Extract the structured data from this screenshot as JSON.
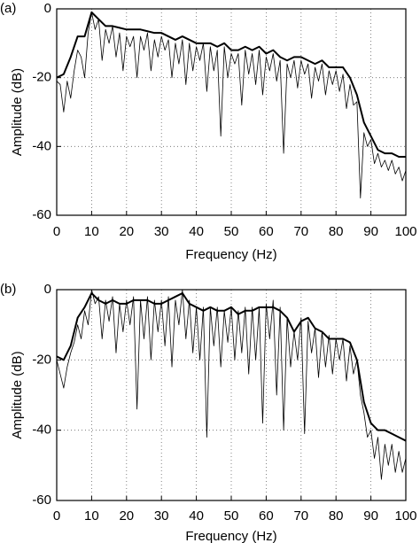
{
  "chart_data": [
    {
      "type": "line",
      "label": "(a)",
      "xlabel": "Frequency  (Hz)",
      "ylabel": "Amplitude  (dB)",
      "xlim": [
        0,
        100
      ],
      "ylim": [
        -60,
        0
      ],
      "xticks": [
        0,
        10,
        20,
        30,
        40,
        50,
        60,
        70,
        80,
        90,
        100
      ],
      "yticks": [
        -60,
        -40,
        -20,
        0
      ],
      "grid": true,
      "series": [
        {
          "color": "#000000",
          "linewidth": 2,
          "x": [
            0,
            2,
            4,
            6,
            8,
            10,
            12,
            14,
            16,
            18,
            20,
            22,
            24,
            26,
            28,
            30,
            32,
            34,
            36,
            38,
            40,
            42,
            44,
            46,
            48,
            50,
            52,
            54,
            56,
            58,
            60,
            62,
            64,
            66,
            68,
            70,
            72,
            74,
            76,
            78,
            80,
            82,
            84,
            86,
            88,
            90,
            92,
            94,
            96,
            98,
            100
          ],
          "values": [
            -20,
            -19,
            -14,
            -8,
            -8,
            -1,
            -3,
            -5,
            -5,
            -5.5,
            -6,
            -6,
            -6,
            -6.5,
            -7,
            -7,
            -8,
            -9,
            -8,
            -9,
            -10,
            -10,
            -10,
            -11,
            -10,
            -12,
            -12,
            -11,
            -12,
            -11,
            -13,
            -12,
            -14,
            -15,
            -14,
            -14,
            -15,
            -16,
            -15,
            -17,
            -17,
            -17,
            -20,
            -25,
            -33,
            -37,
            -41,
            -42,
            -42,
            -43,
            -43
          ]
        },
        {
          "color": "#000000",
          "linewidth": 0.8,
          "x": [
            0,
            1,
            2,
            3,
            4,
            5,
            6,
            7,
            8,
            9,
            10,
            11,
            12,
            13,
            14,
            15,
            16,
            17,
            18,
            19,
            20,
            21,
            22,
            23,
            24,
            25,
            26,
            27,
            28,
            29,
            30,
            31,
            32,
            33,
            34,
            35,
            36,
            37,
            38,
            39,
            40,
            41,
            42,
            43,
            44,
            45,
            46,
            47,
            48,
            49,
            50,
            51,
            52,
            53,
            54,
            55,
            56,
            57,
            58,
            59,
            60,
            61,
            62,
            63,
            64,
            65,
            66,
            67,
            68,
            69,
            70,
            71,
            72,
            73,
            74,
            75,
            76,
            77,
            78,
            79,
            80,
            81,
            82,
            83,
            84,
            85,
            86,
            87,
            88,
            89,
            90,
            91,
            92,
            93,
            94,
            95,
            96,
            97,
            98,
            99,
            100
          ],
          "values": [
            -21,
            -22,
            -30,
            -21,
            -26,
            -18,
            -12,
            -14,
            -20,
            -7,
            -1,
            -6,
            -3,
            -15,
            -6,
            -10,
            -5,
            -14,
            -7,
            -18,
            -8,
            -11,
            -8,
            -20,
            -8,
            -12,
            -7,
            -18,
            -9,
            -14,
            -8,
            -12,
            -9,
            -20,
            -10,
            -16,
            -9,
            -22,
            -10,
            -18,
            -11,
            -15,
            -10,
            -24,
            -11,
            -18,
            -12,
            -37,
            -11,
            -20,
            -13,
            -16,
            -13,
            -28,
            -12,
            -19,
            -13,
            -22,
            -12,
            -25,
            -14,
            -18,
            -13,
            -21,
            -15,
            -42,
            -16,
            -20,
            -15,
            -23,
            -15,
            -19,
            -16,
            -26,
            -17,
            -21,
            -16,
            -25,
            -18,
            -22,
            -18,
            -24,
            -19,
            -29,
            -22,
            -28,
            -27,
            -55,
            -36,
            -40,
            -38,
            -45,
            -42,
            -46,
            -44,
            -47,
            -44,
            -48,
            -46,
            -50,
            -47
          ]
        }
      ]
    },
    {
      "type": "line",
      "label": "(b)",
      "xlabel": "Frequency  (Hz)",
      "ylabel": "Amplitude  (dB)",
      "xlim": [
        0,
        100
      ],
      "ylim": [
        -60,
        0
      ],
      "xticks": [
        0,
        10,
        20,
        30,
        40,
        50,
        60,
        70,
        80,
        90,
        100
      ],
      "yticks": [
        -60,
        -40,
        -20,
        0
      ],
      "grid": true,
      "series": [
        {
          "color": "#000000",
          "linewidth": 2,
          "x": [
            0,
            2,
            4,
            6,
            8,
            10,
            12,
            14,
            16,
            18,
            20,
            22,
            24,
            26,
            28,
            30,
            32,
            34,
            36,
            38,
            40,
            42,
            44,
            46,
            48,
            50,
            52,
            54,
            56,
            58,
            60,
            62,
            64,
            66,
            68,
            70,
            72,
            74,
            76,
            78,
            80,
            82,
            84,
            86,
            88,
            90,
            92,
            94,
            96,
            98,
            100
          ],
          "values": [
            -19,
            -20,
            -16,
            -8,
            -5,
            -1,
            -3,
            -4,
            -3,
            -4,
            -4,
            -3,
            -3,
            -3,
            -4,
            -4,
            -3,
            -2,
            -1,
            -4,
            -5,
            -6,
            -5,
            -6,
            -6,
            -5,
            -7,
            -6,
            -6,
            -5,
            -5,
            -5,
            -6,
            -8,
            -12,
            -9,
            -8,
            -11,
            -12,
            -14,
            -14,
            -14,
            -15,
            -20,
            -32,
            -38,
            -40,
            -40,
            -41,
            -42,
            -43
          ]
        },
        {
          "color": "#000000",
          "linewidth": 0.8,
          "x": [
            0,
            1,
            2,
            3,
            4,
            5,
            6,
            7,
            8,
            9,
            10,
            11,
            12,
            13,
            14,
            15,
            16,
            17,
            18,
            19,
            20,
            21,
            22,
            23,
            24,
            25,
            26,
            27,
            28,
            29,
            30,
            31,
            32,
            33,
            34,
            35,
            36,
            37,
            38,
            39,
            40,
            41,
            42,
            43,
            44,
            45,
            46,
            47,
            48,
            49,
            50,
            51,
            52,
            53,
            54,
            55,
            56,
            57,
            58,
            59,
            60,
            61,
            62,
            63,
            64,
            65,
            66,
            67,
            68,
            69,
            70,
            71,
            72,
            73,
            74,
            75,
            76,
            77,
            78,
            79,
            80,
            81,
            82,
            83,
            84,
            85,
            86,
            87,
            88,
            89,
            90,
            91,
            92,
            93,
            94,
            95,
            96,
            97,
            98,
            99,
            100
          ],
          "values": [
            -20,
            -24,
            -28,
            -22,
            -18,
            -15,
            -10,
            -14,
            -6,
            -10,
            0,
            -4,
            -2,
            -14,
            -3,
            -9,
            -2,
            -18,
            -4,
            -12,
            -3,
            -10,
            -2,
            -34,
            -3,
            -14,
            -2,
            -20,
            -3,
            -12,
            -3,
            -16,
            -2,
            -22,
            -3,
            -10,
            0,
            -14,
            -3,
            -18,
            -5,
            -20,
            -5,
            -42,
            -5,
            -16,
            -5,
            -22,
            -6,
            -15,
            -5,
            -20,
            -6,
            -18,
            -5,
            -24,
            -5,
            -20,
            -5,
            -38,
            -4,
            -14,
            -3,
            -30,
            -5,
            -40,
            -8,
            -22,
            -12,
            -20,
            -8,
            -41,
            -9,
            -18,
            -11,
            -25,
            -12,
            -22,
            -13,
            -24,
            -14,
            -20,
            -14,
            -26,
            -16,
            -24,
            -20,
            -30,
            -35,
            -42,
            -40,
            -48,
            -42,
            -54,
            -44,
            -50,
            -44,
            -52,
            -46,
            -52,
            -48
          ]
        }
      ]
    }
  ]
}
